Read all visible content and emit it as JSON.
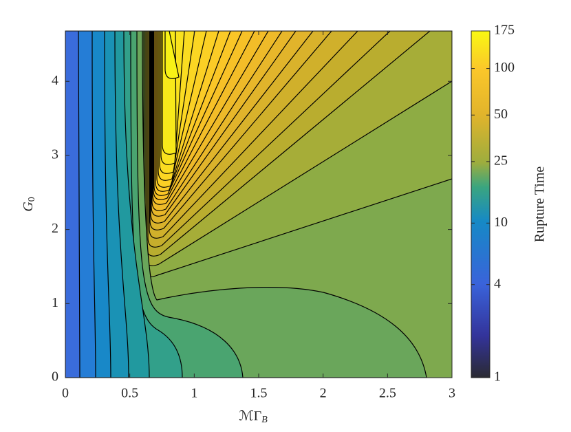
{
  "chart_data": {
    "type": "contour",
    "xlabel": "ℳΓ",
    "xlabel_sub": "B",
    "ylabel": "G",
    "ylabel_sub": "0",
    "xlim": [
      0,
      3
    ],
    "xticks": [
      0,
      0.5,
      1,
      1.5,
      2,
      2.5,
      3
    ],
    "ylim": [
      0,
      4.68
    ],
    "yticks": [
      0,
      1,
      2,
      3,
      4
    ],
    "colorbar": {
      "label": "Rupture Time",
      "scale": "log",
      "lim": [
        1,
        175
      ],
      "ticks": [
        1,
        4,
        10,
        25,
        50,
        100,
        175
      ]
    }
  }
}
